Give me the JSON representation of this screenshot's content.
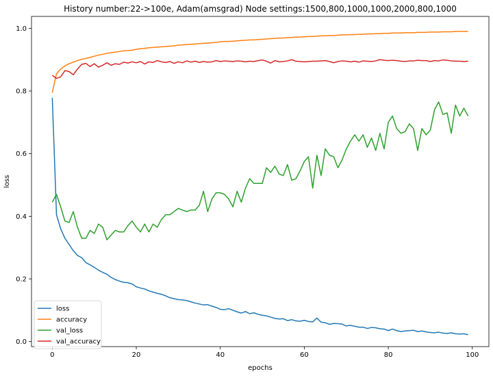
{
  "chart_data": {
    "type": "line",
    "title": "History number:22->100e, Adam(amsgrad) Node settings:1500,800,1000,1000,2000,800,1000",
    "xlabel": "epochs",
    "ylabel": "loss",
    "xlim": [
      -4.95,
      103.95
    ],
    "ylim": [
      -0.016,
      1.038
    ],
    "xticks": [
      0,
      20,
      40,
      60,
      80,
      100
    ],
    "yticks": [
      0.0,
      0.2,
      0.4,
      0.6,
      0.8,
      1.0
    ],
    "xtick_labels": [
      "0",
      "20",
      "40",
      "60",
      "80",
      "100"
    ],
    "ytick_labels": [
      "0.0",
      "0.2",
      "0.4",
      "0.6",
      "0.8",
      "1.0"
    ],
    "grid": false,
    "legend_position": "lower-left",
    "series": [
      {
        "name": "loss",
        "color": "#1f77b4",
        "values": [
          0.778,
          0.405,
          0.36,
          0.33,
          0.31,
          0.29,
          0.275,
          0.268,
          0.252,
          0.245,
          0.237,
          0.228,
          0.221,
          0.215,
          0.205,
          0.198,
          0.193,
          0.189,
          0.188,
          0.184,
          0.175,
          0.171,
          0.168,
          0.162,
          0.158,
          0.154,
          0.151,
          0.146,
          0.14,
          0.137,
          0.134,
          0.133,
          0.131,
          0.127,
          0.123,
          0.12,
          0.117,
          0.118,
          0.113,
          0.109,
          0.103,
          0.102,
          0.105,
          0.1,
          0.095,
          0.091,
          0.096,
          0.089,
          0.092,
          0.087,
          0.084,
          0.082,
          0.078,
          0.074,
          0.072,
          0.073,
          0.067,
          0.07,
          0.066,
          0.065,
          0.068,
          0.064,
          0.063,
          0.075,
          0.062,
          0.06,
          0.055,
          0.058,
          0.057,
          0.056,
          0.05,
          0.052,
          0.049,
          0.046,
          0.046,
          0.042,
          0.045,
          0.044,
          0.041,
          0.04,
          0.035,
          0.04,
          0.035,
          0.032,
          0.034,
          0.035,
          0.036,
          0.032,
          0.034,
          0.031,
          0.029,
          0.028,
          0.03,
          0.027,
          0.026,
          0.028,
          0.025,
          0.024,
          0.025,
          0.022
        ]
      },
      {
        "name": "accuracy",
        "color": "#ff7f0e",
        "values": [
          0.795,
          0.855,
          0.87,
          0.88,
          0.887,
          0.892,
          0.897,
          0.901,
          0.904,
          0.907,
          0.911,
          0.914,
          0.917,
          0.92,
          0.922,
          0.924,
          0.926,
          0.928,
          0.929,
          0.93,
          0.933,
          0.935,
          0.936,
          0.938,
          0.939,
          0.94,
          0.941,
          0.942,
          0.943,
          0.944,
          0.946,
          0.947,
          0.948,
          0.949,
          0.95,
          0.951,
          0.952,
          0.953,
          0.954,
          0.955,
          0.957,
          0.958,
          0.958,
          0.959,
          0.96,
          0.961,
          0.962,
          0.963,
          0.963,
          0.964,
          0.965,
          0.966,
          0.967,
          0.968,
          0.969,
          0.969,
          0.97,
          0.971,
          0.972,
          0.972,
          0.973,
          0.974,
          0.974,
          0.975,
          0.976,
          0.976,
          0.977,
          0.977,
          0.978,
          0.979,
          0.979,
          0.98,
          0.98,
          0.981,
          0.981,
          0.982,
          0.982,
          0.983,
          0.983,
          0.984,
          0.984,
          0.985,
          0.985,
          0.985,
          0.986,
          0.986,
          0.986,
          0.987,
          0.987,
          0.987,
          0.988,
          0.988,
          0.988,
          0.989,
          0.989,
          0.989,
          0.99,
          0.99,
          0.99,
          0.99
        ]
      },
      {
        "name": "val_loss",
        "color": "#2ca02c",
        "values": [
          0.445,
          0.47,
          0.43,
          0.385,
          0.38,
          0.415,
          0.365,
          0.33,
          0.33,
          0.355,
          0.345,
          0.375,
          0.365,
          0.325,
          0.34,
          0.355,
          0.35,
          0.35,
          0.37,
          0.385,
          0.365,
          0.35,
          0.375,
          0.35,
          0.375,
          0.365,
          0.39,
          0.405,
          0.405,
          0.415,
          0.425,
          0.42,
          0.415,
          0.42,
          0.42,
          0.435,
          0.48,
          0.415,
          0.455,
          0.475,
          0.475,
          0.47,
          0.455,
          0.43,
          0.48,
          0.445,
          0.49,
          0.52,
          0.505,
          0.505,
          0.505,
          0.555,
          0.54,
          0.56,
          0.535,
          0.53,
          0.565,
          0.515,
          0.52,
          0.545,
          0.575,
          0.59,
          0.49,
          0.595,
          0.53,
          0.615,
          0.595,
          0.59,
          0.555,
          0.58,
          0.615,
          0.64,
          0.66,
          0.64,
          0.66,
          0.62,
          0.65,
          0.61,
          0.665,
          0.615,
          0.7,
          0.72,
          0.68,
          0.665,
          0.67,
          0.695,
          0.68,
          0.61,
          0.68,
          0.66,
          0.675,
          0.74,
          0.765,
          0.725,
          0.73,
          0.665,
          0.755,
          0.72,
          0.745,
          0.72
        ]
      },
      {
        "name": "val_accuracy",
        "color": "#d62728",
        "values": [
          0.85,
          0.84,
          0.845,
          0.865,
          0.862,
          0.852,
          0.87,
          0.885,
          0.888,
          0.878,
          0.887,
          0.876,
          0.882,
          0.89,
          0.882,
          0.887,
          0.885,
          0.892,
          0.889,
          0.893,
          0.89,
          0.894,
          0.886,
          0.893,
          0.891,
          0.897,
          0.893,
          0.891,
          0.894,
          0.888,
          0.893,
          0.89,
          0.896,
          0.892,
          0.895,
          0.891,
          0.894,
          0.892,
          0.893,
          0.897,
          0.894,
          0.896,
          0.895,
          0.894,
          0.896,
          0.895,
          0.893,
          0.895,
          0.894,
          0.897,
          0.899,
          0.895,
          0.889,
          0.897,
          0.893,
          0.894,
          0.896,
          0.9,
          0.895,
          0.894,
          0.893,
          0.894,
          0.895,
          0.895,
          0.896,
          0.897,
          0.894,
          0.89,
          0.894,
          0.896,
          0.895,
          0.893,
          0.895,
          0.892,
          0.896,
          0.895,
          0.894,
          0.896,
          0.9,
          0.898,
          0.897,
          0.898,
          0.897,
          0.895,
          0.894,
          0.896,
          0.896,
          0.898,
          0.897,
          0.897,
          0.894,
          0.897,
          0.896,
          0.899,
          0.898,
          0.896,
          0.895,
          0.895,
          0.894,
          0.895
        ]
      }
    ]
  }
}
